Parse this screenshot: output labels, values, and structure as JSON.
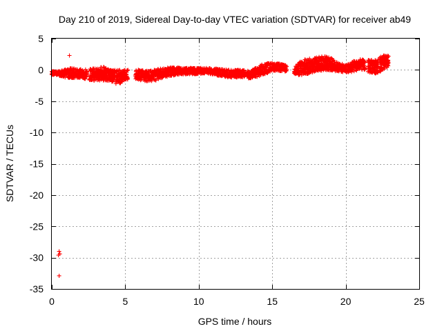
{
  "chart_data": {
    "type": "scatter",
    "title": "Day 210 of 2019, Sidereal Day-to-day VTEC variation (SDTVAR) for receiver ab49",
    "xlabel": "GPS time / hours",
    "ylabel": "SDTVAR / TECUs",
    "xlim": [
      0,
      25
    ],
    "ylim": [
      -35,
      5
    ],
    "xticks": [
      0,
      5,
      10,
      15,
      20,
      25
    ],
    "yticks": [
      5,
      0,
      -5,
      -10,
      -15,
      -20,
      -25,
      -30,
      -35
    ],
    "grid": true,
    "marker": "plus",
    "color": "#ff0000",
    "outliers": [
      {
        "x": 1.2,
        "y": 2.3
      },
      {
        "x": 0.5,
        "y": -29.0
      },
      {
        "x": 0.55,
        "y": -29.4
      },
      {
        "x": 0.45,
        "y": -29.6
      },
      {
        "x": 0.5,
        "y": -32.9
      }
    ],
    "trend": [
      {
        "x": 0.0,
        "y": -0.5,
        "spread": 0.3
      },
      {
        "x": 0.4,
        "y": -0.5,
        "spread": 0.3
      },
      {
        "x": 0.8,
        "y": -0.6,
        "spread": 0.6
      },
      {
        "x": 1.4,
        "y": -0.5,
        "spread": 0.8
      },
      {
        "x": 2.0,
        "y": -0.6,
        "spread": 0.7
      },
      {
        "x": 2.5,
        "y": -0.8,
        "spread": 0.9
      },
      {
        "x": 3.0,
        "y": -0.7,
        "spread": 1.0
      },
      {
        "x": 3.5,
        "y": -0.6,
        "spread": 1.1
      },
      {
        "x": 4.0,
        "y": -0.9,
        "spread": 0.9
      },
      {
        "x": 4.5,
        "y": -1.2,
        "spread": 1.2
      },
      {
        "x": 5.0,
        "y": -0.8,
        "spread": 0.8
      },
      {
        "x": 5.5,
        "y": -0.8,
        "spread": 0.8
      },
      {
        "x": 6.0,
        "y": -0.8,
        "spread": 0.9
      },
      {
        "x": 6.5,
        "y": -1.0,
        "spread": 0.9
      },
      {
        "x": 7.0,
        "y": -0.9,
        "spread": 0.9
      },
      {
        "x": 7.5,
        "y": -0.5,
        "spread": 0.8
      },
      {
        "x": 8.0,
        "y": -0.3,
        "spread": 0.7
      },
      {
        "x": 8.5,
        "y": -0.2,
        "spread": 0.6
      },
      {
        "x": 9.0,
        "y": -0.2,
        "spread": 0.5
      },
      {
        "x": 9.5,
        "y": -0.2,
        "spread": 0.5
      },
      {
        "x": 10.0,
        "y": -0.2,
        "spread": 0.5
      },
      {
        "x": 10.5,
        "y": -0.1,
        "spread": 0.4
      },
      {
        "x": 11.0,
        "y": -0.3,
        "spread": 0.5
      },
      {
        "x": 11.5,
        "y": -0.4,
        "spread": 0.6
      },
      {
        "x": 12.0,
        "y": -0.6,
        "spread": 0.6
      },
      {
        "x": 12.5,
        "y": -0.6,
        "spread": 0.6
      },
      {
        "x": 13.0,
        "y": -0.6,
        "spread": 0.6
      },
      {
        "x": 13.5,
        "y": -0.8,
        "spread": 0.6
      },
      {
        "x": 14.0,
        "y": -0.3,
        "spread": 0.8
      },
      {
        "x": 14.5,
        "y": 0.2,
        "spread": 0.9
      },
      {
        "x": 15.0,
        "y": 0.5,
        "spread": 0.6
      },
      {
        "x": 15.5,
        "y": 0.4,
        "spread": 0.6
      },
      {
        "x": 16.0,
        "y": 0.2,
        "spread": 0.5
      },
      {
        "x": 16.5,
        "y": -0.1,
        "spread": 0.5
      },
      {
        "x": 17.0,
        "y": 0.3,
        "spread": 1.3
      },
      {
        "x": 17.5,
        "y": 0.6,
        "spread": 1.2
      },
      {
        "x": 18.0,
        "y": 0.9,
        "spread": 1.1
      },
      {
        "x": 18.5,
        "y": 1.1,
        "spread": 1.2
      },
      {
        "x": 19.0,
        "y": 0.9,
        "spread": 1.0
      },
      {
        "x": 19.5,
        "y": 0.4,
        "spread": 0.7
      },
      {
        "x": 20.0,
        "y": 0.2,
        "spread": 0.6
      },
      {
        "x": 20.5,
        "y": 0.5,
        "spread": 0.9
      },
      {
        "x": 21.0,
        "y": 0.9,
        "spread": 0.8
      },
      {
        "x": 21.5,
        "y": 0.6,
        "spread": 1.0
      },
      {
        "x": 22.0,
        "y": 0.5,
        "spread": 1.1
      },
      {
        "x": 22.5,
        "y": 1.1,
        "spread": 1.2
      },
      {
        "x": 22.9,
        "y": 1.3,
        "spread": 1.0
      }
    ],
    "gaps": [
      [
        2.4,
        2.55
      ],
      [
        4.3,
        4.35
      ],
      [
        5.2,
        5.7
      ],
      [
        13.2,
        13.3
      ],
      [
        16.0,
        16.5
      ],
      [
        21.3,
        21.5
      ],
      [
        22.2,
        22.3
      ]
    ]
  }
}
